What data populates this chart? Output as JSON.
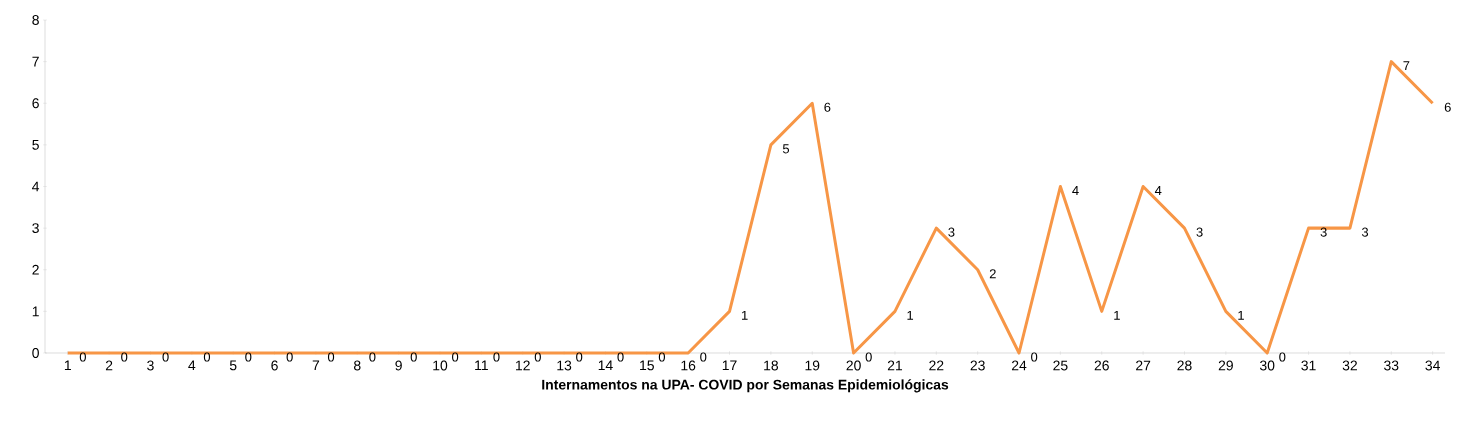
{
  "chart_data": {
    "type": "line",
    "xlabel": "Internamentos na UPA- COVID por Semanas Epidemiológicas",
    "categories": [
      "1",
      "2",
      "3",
      "4",
      "5",
      "6",
      "7",
      "8",
      "9",
      "10",
      "11",
      "12",
      "13",
      "14",
      "15",
      "16",
      "17",
      "18",
      "19",
      "20",
      "21",
      "22",
      "23",
      "24",
      "25",
      "26",
      "27",
      "28",
      "29",
      "30",
      "31",
      "32",
      "33",
      "34"
    ],
    "values": [
      0,
      0,
      0,
      0,
      0,
      0,
      0,
      0,
      0,
      0,
      0,
      0,
      0,
      0,
      0,
      0,
      1,
      5,
      6,
      0,
      1,
      3,
      2,
      0,
      4,
      1,
      4,
      3,
      1,
      0,
      3,
      3,
      7,
      6
    ],
    "color": "#f79646",
    "ylim": [
      0,
      8
    ],
    "yticks": [
      0,
      1,
      2,
      3,
      4,
      5,
      6,
      7,
      8
    ],
    "data_labels": true,
    "grid": false,
    "marker": "none",
    "line_style": "solid"
  }
}
